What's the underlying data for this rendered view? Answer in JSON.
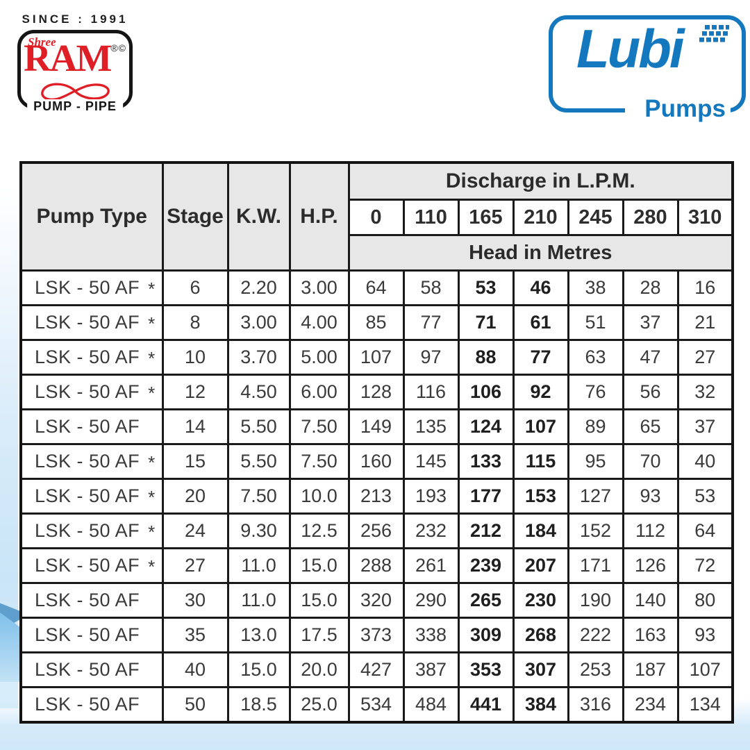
{
  "branding": {
    "ram": {
      "since": "SINCE : 1991",
      "shree": "Shree",
      "name": "RAM",
      "marks": "®©",
      "tagline": "PUMP - PIPE",
      "color": "#e01e25"
    },
    "lubi": {
      "name": "Lubi",
      "tagline": "Pumps",
      "color": "#1478bf"
    }
  },
  "table": {
    "columns": {
      "pump_type": "Pump Type",
      "stage": "Stage",
      "kw": "K.W.",
      "hp": "H.P."
    },
    "discharge_header": "Discharge in L.P.M.",
    "discharge_values": [
      "0",
      "110",
      "165",
      "210",
      "245",
      "280",
      "310"
    ],
    "head_header": "Head in Metres",
    "bold_columns": [
      2,
      3
    ],
    "rows": [
      {
        "pump": "LSK - 50 AF",
        "star": "*",
        "stage": "6",
        "kw": "2.20",
        "hp": "3.00",
        "heads": [
          "64",
          "58",
          "53",
          "46",
          "38",
          "28",
          "16"
        ]
      },
      {
        "pump": "LSK - 50 AF",
        "star": "*",
        "stage": "8",
        "kw": "3.00",
        "hp": "4.00",
        "heads": [
          "85",
          "77",
          "71",
          "61",
          "51",
          "37",
          "21"
        ]
      },
      {
        "pump": "LSK - 50 AF",
        "star": "*",
        "stage": "10",
        "kw": "3.70",
        "hp": "5.00",
        "heads": [
          "107",
          "97",
          "88",
          "77",
          "63",
          "47",
          "27"
        ]
      },
      {
        "pump": "LSK - 50 AF",
        "star": "*",
        "stage": "12",
        "kw": "4.50",
        "hp": "6.00",
        "heads": [
          "128",
          "116",
          "106",
          "92",
          "76",
          "56",
          "32"
        ]
      },
      {
        "pump": "LSK - 50 AF",
        "star": "",
        "stage": "14",
        "kw": "5.50",
        "hp": "7.50",
        "heads": [
          "149",
          "135",
          "124",
          "107",
          "89",
          "65",
          "37"
        ]
      },
      {
        "pump": "LSK - 50 AF",
        "star": "*",
        "stage": "15",
        "kw": "5.50",
        "hp": "7.50",
        "heads": [
          "160",
          "145",
          "133",
          "115",
          "95",
          "70",
          "40"
        ]
      },
      {
        "pump": "LSK - 50 AF",
        "star": "*",
        "stage": "20",
        "kw": "7.50",
        "hp": "10.0",
        "heads": [
          "213",
          "193",
          "177",
          "153",
          "127",
          "93",
          "53"
        ]
      },
      {
        "pump": "LSK - 50 AF",
        "star": "*",
        "stage": "24",
        "kw": "9.30",
        "hp": "12.5",
        "heads": [
          "256",
          "232",
          "212",
          "184",
          "152",
          "112",
          "64"
        ]
      },
      {
        "pump": "LSK - 50 AF",
        "star": "*",
        "stage": "27",
        "kw": "11.0",
        "hp": "15.0",
        "heads": [
          "288",
          "261",
          "239",
          "207",
          "171",
          "126",
          "72"
        ]
      },
      {
        "pump": "LSK - 50 AF",
        "star": "",
        "stage": "30",
        "kw": "11.0",
        "hp": "15.0",
        "heads": [
          "320",
          "290",
          "265",
          "230",
          "190",
          "140",
          "80"
        ]
      },
      {
        "pump": "LSK - 50 AF",
        "star": "",
        "stage": "35",
        "kw": "13.0",
        "hp": "17.5",
        "heads": [
          "373",
          "338",
          "309",
          "268",
          "222",
          "163",
          "93"
        ]
      },
      {
        "pump": "LSK - 50 AF",
        "star": "",
        "stage": "40",
        "kw": "15.0",
        "hp": "20.0",
        "heads": [
          "427",
          "387",
          "353",
          "307",
          "253",
          "187",
          "107"
        ]
      },
      {
        "pump": "LSK - 50 AF",
        "star": "",
        "stage": "50",
        "kw": "18.5",
        "hp": "25.0",
        "heads": [
          "534",
          "484",
          "441",
          "384",
          "316",
          "234",
          "134"
        ]
      }
    ]
  }
}
